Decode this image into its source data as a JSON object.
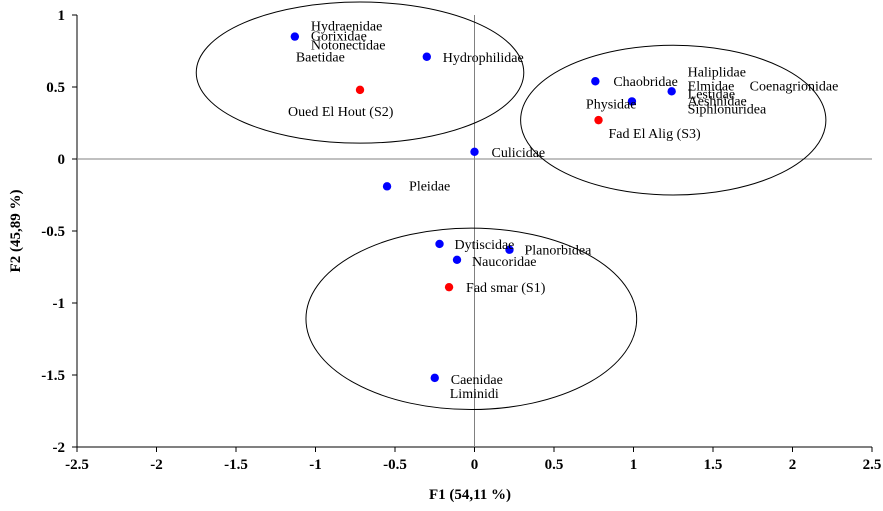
{
  "chart_data": {
    "type": "scatter",
    "title": "",
    "xlabel": "F1 (54,11 %)",
    "ylabel": "F2 (45,89 %)",
    "xlim": [
      -2.5,
      2.5
    ],
    "ylim": [
      -2,
      1
    ],
    "x_ticks": [
      -2.5,
      -2,
      -1.5,
      -1,
      -0.5,
      0,
      0.5,
      1,
      1.5,
      2,
      2.5
    ],
    "y_ticks": [
      1,
      0.5,
      0,
      -0.5,
      -1,
      -1.5,
      -2
    ],
    "x_tick_labels": [
      "-2.5",
      "-2",
      "-1.5",
      "-1",
      "-0.5",
      "0",
      "0.5",
      "1",
      "1.5",
      "2",
      "2.5"
    ],
    "y_tick_labels": [
      "1",
      "0.5",
      "0",
      "-0.5",
      "-1",
      "-1.5",
      "-2"
    ],
    "grid": false,
    "legend": "none",
    "colors": {
      "taxa": "#0000ff",
      "sites": "#ff0000",
      "axes": "#808080",
      "ellipse": "#000000"
    },
    "series": [
      {
        "kind": "taxa",
        "points": [
          {
            "label": "Hydraenidae",
            "x": -1.13,
            "y": 0.85
          },
          {
            "label": "Gorixidae",
            "x": -1.13,
            "y": 0.85
          },
          {
            "label": "Notonectidae",
            "x": -1.13,
            "y": 0.85
          },
          {
            "label": "Baetidae",
            "x": -1.13,
            "y": 0.85
          },
          {
            "label": "Hydrophilidae",
            "x": -0.3,
            "y": 0.71
          },
          {
            "label": "Chaobridae",
            "x": 0.76,
            "y": 0.54
          },
          {
            "label": "Physidae",
            "x": 0.99,
            "y": 0.4
          },
          {
            "label": "Haliplidae",
            "x": 1.24,
            "y": 0.47
          },
          {
            "label": "Elmidae",
            "x": 1.24,
            "y": 0.47
          },
          {
            "label": "Coenagrionidae",
            "x": 1.24,
            "y": 0.47
          },
          {
            "label": "Lestidae",
            "x": 1.24,
            "y": 0.47
          },
          {
            "label": "Aeshnidae",
            "x": 1.24,
            "y": 0.47
          },
          {
            "label": "Siphlonuridea",
            "x": 1.24,
            "y": 0.47
          },
          {
            "label": "Culicidae",
            "x": 0.0,
            "y": 0.05
          },
          {
            "label": "Pleidae",
            "x": -0.55,
            "y": -0.19
          },
          {
            "label": "Dytiscidae",
            "x": -0.22,
            "y": -0.59
          },
          {
            "label": "Planorbidea",
            "x": 0.22,
            "y": -0.63
          },
          {
            "label": "Naucoridae",
            "x": -0.11,
            "y": -0.7
          },
          {
            "label": "Caenidae",
            "x": -0.25,
            "y": -1.52
          },
          {
            "label": "Liminidi",
            "x": -0.25,
            "y": -1.52
          }
        ]
      },
      {
        "kind": "sites",
        "points": [
          {
            "label": "Oued El Hout (S2)",
            "x": -0.72,
            "y": 0.48
          },
          {
            "label": "Fad El Alig (S3)",
            "x": 0.78,
            "y": 0.27
          },
          {
            "label": "Fad smar (S1)",
            "x": -0.16,
            "y": -0.89
          }
        ]
      }
    ],
    "groups": [
      {
        "members": "Oued El Hout (S2)",
        "center": [
          -0.72,
          0.6
        ],
        "rx": 1.03,
        "ry": 0.49
      },
      {
        "members": "Fad El Alig (S3)",
        "center": [
          1.25,
          0.27
        ],
        "rx": 0.96,
        "ry": 0.52
      },
      {
        "members": "Fad smar (S1)",
        "center": [
          -0.02,
          -1.11
        ],
        "rx": 1.04,
        "ry": 0.63
      }
    ]
  }
}
